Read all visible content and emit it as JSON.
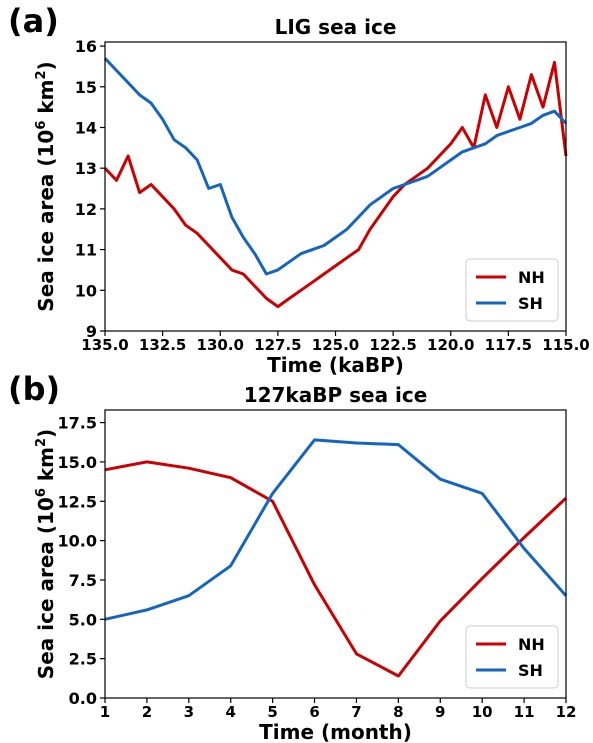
{
  "chart_data": [
    {
      "type": "line",
      "panel": "(a)",
      "title": "LIG sea ice",
      "xlabel": "Time (kaBP)",
      "ylabel": [
        "Sea ice area (10",
        "6",
        " km",
        "2",
        ")"
      ],
      "x": [
        135,
        134.5,
        134,
        133.5,
        133,
        132.5,
        132,
        131.5,
        131,
        130.5,
        130,
        129.5,
        129,
        128.5,
        128,
        127.5,
        127,
        126.5,
        126,
        125.5,
        125,
        124.5,
        124,
        123.5,
        123,
        122.5,
        122,
        121.5,
        121,
        120.5,
        120,
        119.5,
        119,
        118.5,
        118,
        117.5,
        117,
        116.5,
        116,
        115.5,
        115
      ],
      "series": [
        {
          "name": "NH",
          "color": "#cc0000",
          "values": [
            13.0,
            12.7,
            13.3,
            12.4,
            12.6,
            12.3,
            12.0,
            11.6,
            11.4,
            11.1,
            10.8,
            10.5,
            10.4,
            10.1,
            9.8,
            9.6,
            9.8,
            10.0,
            10.2,
            10.4,
            10.6,
            10.8,
            11.0,
            11.5,
            11.9,
            12.3,
            12.6,
            12.8,
            13.0,
            13.3,
            13.6,
            14.0,
            13.5,
            14.8,
            14.0,
            15.0,
            14.2,
            15.3,
            14.5,
            15.6,
            13.3
          ]
        },
        {
          "name": "SH",
          "color": "#1565c0",
          "values": [
            15.7,
            15.4,
            15.1,
            14.8,
            14.6,
            14.2,
            13.7,
            13.5,
            13.2,
            12.5,
            12.6,
            11.8,
            11.3,
            10.9,
            10.4,
            10.5,
            10.7,
            10.9,
            11.0,
            11.1,
            11.3,
            11.5,
            11.8,
            12.1,
            12.3,
            12.5,
            12.6,
            12.7,
            12.8,
            13.0,
            13.2,
            13.4,
            13.5,
            13.6,
            13.8,
            13.9,
            14.0,
            14.1,
            14.3,
            14.4,
            14.1
          ]
        }
      ],
      "xlim": [
        135,
        115
      ],
      "xticks": [
        {
          "value": 135,
          "label": "135.0"
        },
        {
          "value": 132.5,
          "label": "132.5"
        },
        {
          "value": 130,
          "label": "130.0"
        },
        {
          "value": 127.5,
          "label": "127.5"
        },
        {
          "value": 125,
          "label": "125.0"
        },
        {
          "value": 122.5,
          "label": "122.5"
        },
        {
          "value": 120,
          "label": "120.0"
        },
        {
          "value": 117.5,
          "label": "117.5"
        },
        {
          "value": 115,
          "label": "115.0"
        }
      ],
      "ylim": [
        9,
        16.1
      ],
      "yticks": [
        9,
        10,
        11,
        12,
        13,
        14,
        15,
        16
      ],
      "legend": "lower right"
    },
    {
      "type": "line",
      "panel": "(b)",
      "title": "127kaBP sea ice",
      "xlabel": "Time (month)",
      "ylabel": [
        "Sea ice area (10",
        "6",
        " km",
        "2",
        ")"
      ],
      "x": [
        1,
        2,
        3,
        4,
        5,
        6,
        7,
        8,
        9,
        10,
        11,
        12
      ],
      "series": [
        {
          "name": "NH",
          "color": "#cc0000",
          "values": [
            14.5,
            15.0,
            14.6,
            14.0,
            12.5,
            7.2,
            2.8,
            1.4,
            4.9,
            7.6,
            10.2,
            12.7
          ]
        },
        {
          "name": "SH",
          "color": "#1565c0",
          "values": [
            5.0,
            5.6,
            6.5,
            8.4,
            13.0,
            16.4,
            16.2,
            16.1,
            13.9,
            13.0,
            9.5,
            6.5
          ]
        }
      ],
      "xlim": [
        1,
        12
      ],
      "xticks": [
        1,
        2,
        3,
        4,
        5,
        6,
        7,
        8,
        9,
        10,
        11,
        12
      ],
      "ylim": [
        0,
        18.3
      ],
      "yticks": [
        {
          "value": 0,
          "label": "0.0"
        },
        {
          "value": 2.5,
          "label": "2.5"
        },
        {
          "value": 5,
          "label": "5.0"
        },
        {
          "value": 7.5,
          "label": "7.5"
        },
        {
          "value": 10,
          "label": "10.0"
        },
        {
          "value": 12.5,
          "label": "12.5"
        },
        {
          "value": 15,
          "label": "15.0"
        },
        {
          "value": 17.5,
          "label": "17.5"
        }
      ],
      "legend": "lower right"
    }
  ]
}
